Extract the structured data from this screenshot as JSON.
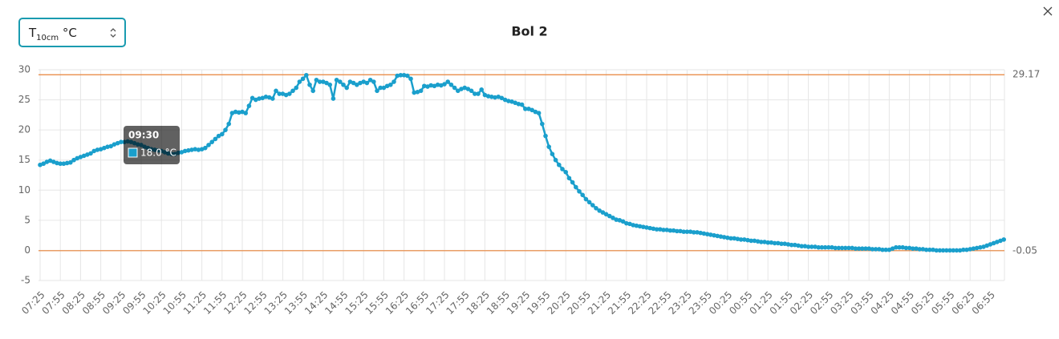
{
  "ui": {
    "select": {
      "base": "T",
      "sub": "10cm",
      "unit": "°C"
    }
  },
  "chart_data": {
    "type": "line",
    "title": "Bol 2",
    "color": "#1a9fcc",
    "grid": true,
    "ylim": [
      -5,
      30
    ],
    "yticks": [
      -5,
      0,
      5,
      10,
      15,
      20,
      25,
      30
    ],
    "reference_lines": [
      {
        "value": 29.17,
        "color": "#e8833a"
      },
      {
        "value": -0.05,
        "color": "#e8833a"
      }
    ],
    "tooltip": {
      "title": "09:30",
      "label": "18.0 °C"
    },
    "categories": [
      "07:25",
      null,
      null,
      null,
      null,
      null,
      "07:55",
      null,
      null,
      null,
      null,
      null,
      "08:25",
      null,
      null,
      null,
      null,
      null,
      "08:55",
      null,
      null,
      null,
      null,
      null,
      "09:25",
      null,
      null,
      null,
      null,
      null,
      "09:55",
      null,
      null,
      null,
      null,
      null,
      "10:25",
      null,
      null,
      null,
      null,
      null,
      "10:55",
      null,
      null,
      null,
      null,
      null,
      "11:25",
      null,
      null,
      null,
      null,
      null,
      "11:55",
      null,
      null,
      null,
      null,
      null,
      "12:25",
      null,
      null,
      null,
      null,
      null,
      "12:55",
      null,
      null,
      null,
      null,
      null,
      "13:25",
      null,
      null,
      null,
      null,
      null,
      "13:55",
      null,
      null,
      null,
      null,
      null,
      "14:25",
      null,
      null,
      null,
      null,
      null,
      "14:55",
      null,
      null,
      null,
      null,
      null,
      "15:25",
      null,
      null,
      null,
      null,
      null,
      "15:55",
      null,
      null,
      null,
      null,
      null,
      "16:25",
      null,
      null,
      null,
      null,
      null,
      "16:55",
      null,
      null,
      null,
      null,
      null,
      "17:25",
      null,
      null,
      null,
      null,
      null,
      "17:55",
      null,
      null,
      null,
      null,
      null,
      "18:25",
      null,
      null,
      null,
      null,
      null,
      "18:55",
      null,
      null,
      null,
      null,
      null,
      "19:25",
      null,
      null,
      null,
      null,
      null,
      "19:55",
      null,
      null,
      null,
      null,
      null,
      "20:25",
      null,
      null,
      null,
      null,
      null,
      "20:55",
      null,
      null,
      null,
      null,
      null,
      "21:25",
      null,
      null,
      null,
      null,
      null,
      "21:55",
      null,
      null,
      null,
      null,
      null,
      "22:25",
      null,
      null,
      null,
      null,
      null,
      "22:55",
      null,
      null,
      null,
      null,
      null,
      "23:25",
      null,
      null,
      null,
      null,
      null,
      "23:55",
      null,
      null,
      null,
      null,
      null,
      "00:25",
      null,
      null,
      null,
      null,
      null,
      "00:55",
      null,
      null,
      null,
      null,
      null,
      "01:25",
      null,
      null,
      null,
      null,
      null,
      "01:55",
      null,
      null,
      null,
      null,
      null,
      "02:25",
      null,
      null,
      null,
      null,
      null,
      "02:55",
      null,
      null,
      null,
      null,
      null,
      "03:25",
      null,
      null,
      null,
      null,
      null,
      "03:55",
      null,
      null,
      null,
      null,
      null,
      "04:25",
      null,
      null,
      null,
      null,
      null,
      "04:55",
      null,
      null,
      null,
      null,
      null,
      "05:25",
      null,
      null,
      null,
      null,
      null,
      "05:55",
      null,
      null,
      null,
      null,
      null,
      "06:25",
      null,
      null,
      null,
      null,
      null,
      "06:55",
      null,
      null,
      null,
      null
    ],
    "values": [
      14.2,
      14.4,
      14.7,
      14.9,
      14.7,
      14.5,
      14.4,
      14.4,
      14.5,
      14.6,
      15.0,
      15.3,
      15.5,
      15.7,
      15.9,
      16.1,
      16.5,
      16.7,
      16.8,
      17.0,
      17.2,
      17.3,
      17.6,
      17.8,
      18.0,
      18.0,
      18.1,
      18.0,
      17.8,
      17.6,
      17.5,
      17.2,
      17.0,
      16.8,
      16.7,
      16.6,
      16.5,
      16.3,
      16.1,
      16.0,
      16.0,
      16.2,
      16.3,
      16.5,
      16.6,
      16.7,
      16.8,
      16.7,
      16.8,
      17.0,
      17.5,
      18.0,
      18.5,
      19.0,
      19.3,
      20.0,
      21.0,
      22.8,
      23.0,
      22.9,
      23.0,
      22.8,
      24.0,
      25.3,
      25.0,
      25.2,
      25.3,
      25.5,
      25.4,
      25.2,
      26.5,
      26.0,
      26.0,
      25.8,
      26.0,
      26.5,
      27.0,
      28.0,
      28.5,
      29.1,
      27.5,
      26.5,
      28.3,
      28.0,
      28.0,
      27.8,
      27.5,
      25.2,
      28.3,
      28.0,
      27.5,
      27.0,
      28.0,
      27.8,
      27.5,
      27.8,
      28.0,
      27.8,
      28.3,
      28.0,
      26.5,
      27.0,
      27.0,
      27.3,
      27.5,
      28.0,
      29.0,
      29.1,
      29.1,
      29.0,
      28.5,
      26.2,
      26.3,
      26.5,
      27.3,
      27.2,
      27.4,
      27.3,
      27.5,
      27.4,
      27.6,
      28.0,
      27.5,
      27.0,
      26.5,
      26.8,
      27.0,
      26.8,
      26.5,
      26.0,
      26.0,
      26.7,
      25.8,
      25.6,
      25.5,
      25.4,
      25.5,
      25.3,
      25.0,
      24.8,
      24.7,
      24.5,
      24.3,
      24.2,
      23.5,
      23.5,
      23.3,
      23.0,
      22.8,
      21.0,
      19.0,
      17.2,
      16.0,
      15.0,
      14.2,
      13.5,
      13.0,
      12.0,
      11.3,
      10.5,
      9.8,
      9.2,
      8.5,
      8.0,
      7.5,
      7.0,
      6.6,
      6.3,
      6.0,
      5.7,
      5.4,
      5.1,
      5.0,
      4.8,
      4.5,
      4.4,
      4.2,
      4.1,
      4.0,
      3.9,
      3.8,
      3.7,
      3.6,
      3.5,
      3.5,
      3.4,
      3.4,
      3.3,
      3.3,
      3.2,
      3.2,
      3.1,
      3.1,
      3.1,
      3.0,
      3.0,
      2.9,
      2.8,
      2.7,
      2.6,
      2.5,
      2.4,
      2.3,
      2.2,
      2.1,
      2.0,
      2.0,
      1.9,
      1.8,
      1.8,
      1.7,
      1.6,
      1.6,
      1.5,
      1.4,
      1.4,
      1.3,
      1.3,
      1.2,
      1.2,
      1.1,
      1.1,
      1.0,
      0.9,
      0.9,
      0.8,
      0.7,
      0.7,
      0.6,
      0.6,
      0.6,
      0.5,
      0.5,
      0.5,
      0.5,
      0.5,
      0.4,
      0.4,
      0.4,
      0.4,
      0.4,
      0.4,
      0.3,
      0.3,
      0.3,
      0.3,
      0.3,
      0.2,
      0.2,
      0.2,
      0.1,
      0.1,
      0.1,
      0.3,
      0.5,
      0.5,
      0.5,
      0.4,
      0.4,
      0.3,
      0.3,
      0.2,
      0.2,
      0.1,
      0.1,
      0.1,
      0.0,
      0.0,
      0.0,
      0.0,
      0.0,
      0.0,
      0.0,
      0.0,
      0.1,
      0.1,
      0.2,
      0.3,
      0.4,
      0.5,
      0.6,
      0.8,
      1.0,
      1.2,
      1.4,
      1.6,
      1.8
    ]
  }
}
